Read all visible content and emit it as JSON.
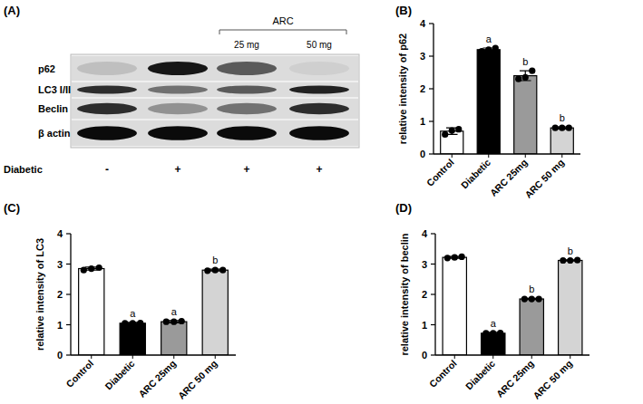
{
  "chart_data": [
    {
      "type": "bar",
      "title": "(B)",
      "y_label": "relative intensity of p62",
      "categories": [
        "Control",
        "Diabetic",
        "ARC 25mg",
        "ARC 50 mg"
      ],
      "values": [
        0.7,
        3.2,
        2.4,
        0.8
      ],
      "errors": [
        0.1,
        0.05,
        0.15,
        0.03
      ],
      "points": [
        [
          0.6,
          0.72,
          0.76
        ],
        [
          3.15,
          3.2,
          3.25
        ],
        [
          2.3,
          2.35,
          2.55
        ],
        [
          0.8,
          0.8,
          0.8
        ]
      ],
      "annotations": [
        null,
        "a",
        "b",
        "b"
      ],
      "colors": [
        "#ffffff",
        "#000000",
        "#9a9a9a",
        "#d4d4d4"
      ],
      "ylim": [
        0,
        4
      ],
      "yticks": [
        0,
        1,
        2,
        3,
        4
      ],
      "grid": false
    },
    {
      "type": "bar",
      "title": "(C)",
      "y_label": "relative intensity of LC3",
      "categories": [
        "Control",
        "Diabetic",
        "ARC 25mg",
        "ARC 50 mg"
      ],
      "values": [
        2.85,
        1.05,
        1.1,
        2.8
      ],
      "errors": [
        0.05,
        0.03,
        0.04,
        0.03
      ],
      "points": [
        [
          2.8,
          2.85,
          2.88
        ],
        [
          1.05,
          1.05,
          1.06
        ],
        [
          1.1,
          1.1,
          1.12
        ],
        [
          2.78,
          2.8,
          2.8
        ]
      ],
      "annotations": [
        null,
        "a",
        "a",
        "b"
      ],
      "colors": [
        "#ffffff",
        "#000000",
        "#9a9a9a",
        "#d4d4d4"
      ],
      "ylim": [
        0,
        4
      ],
      "yticks": [
        0,
        1,
        2,
        3,
        4
      ],
      "grid": false
    },
    {
      "type": "bar",
      "title": "(D)",
      "y_label": "relative intensity of beclin",
      "categories": [
        "Control",
        "Diabetic",
        "ARC 25mg",
        "ARC 50 mg"
      ],
      "values": [
        3.22,
        0.72,
        1.85,
        3.12
      ],
      "errors": [
        0.03,
        0.03,
        0.02,
        0.02
      ],
      "points": [
        [
          3.2,
          3.22,
          3.24
        ],
        [
          0.72,
          0.72,
          0.73
        ],
        [
          1.85,
          1.85,
          1.85
        ],
        [
          3.12,
          3.12,
          3.13
        ]
      ],
      "annotations": [
        null,
        "a",
        "b",
        "b"
      ],
      "colors": [
        "#ffffff",
        "#000000",
        "#9a9a9a",
        "#d4d4d4"
      ],
      "ylim": [
        0,
        4
      ],
      "yticks": [
        0,
        1,
        2,
        3,
        4
      ],
      "grid": false
    }
  ],
  "blot": {
    "title": "(A)",
    "group_label": "ARC",
    "doses": [
      null,
      null,
      "25 mg",
      "50 mg"
    ],
    "rows": [
      {
        "label": "p62",
        "intensity": [
          0.15,
          0.9,
          0.6,
          0.08
        ]
      },
      {
        "label": "LC3 I/II",
        "intensity": [
          0.8,
          0.5,
          0.6,
          0.85
        ]
      },
      {
        "label": "Beclin",
        "intensity": [
          0.8,
          0.35,
          0.5,
          0.8
        ]
      },
      {
        "label": "β actin",
        "intensity": [
          0.95,
          0.95,
          0.95,
          0.95
        ]
      }
    ],
    "condition_label": "Diabetic",
    "condition": [
      "-",
      "+",
      "+",
      "+"
    ]
  }
}
